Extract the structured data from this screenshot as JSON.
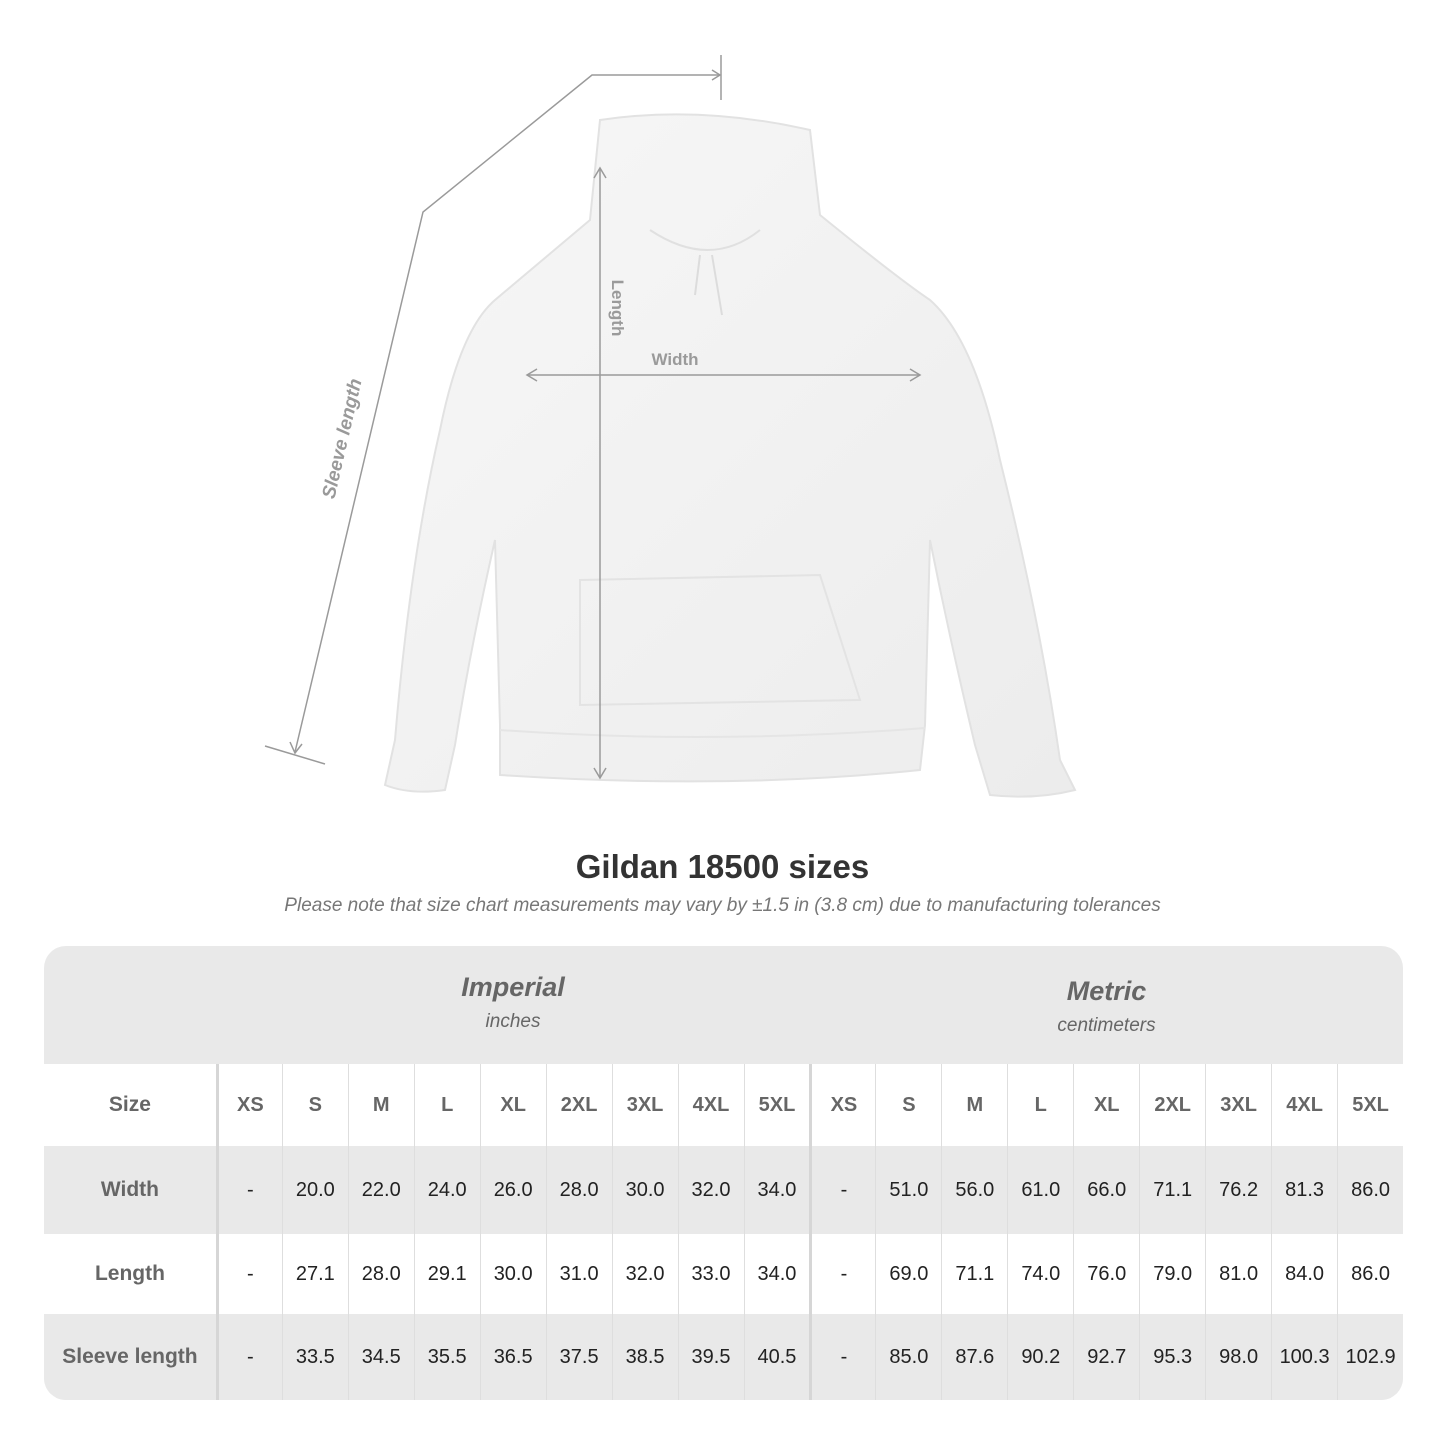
{
  "diagram": {
    "labels": {
      "sleeve": "Sleeve length",
      "length": "Length",
      "width": "Width"
    },
    "line_color": "#9a9a9a"
  },
  "title": "Gildan 18500 sizes",
  "note": "Please note that size chart measurements may vary by ±1.5 in (3.8 cm) due to manufacturing tolerances",
  "table": {
    "imperial": {
      "label": "Imperial",
      "unit": "inches"
    },
    "metric": {
      "label": "Metric",
      "unit": "centimeters"
    },
    "size_label": "Size",
    "sizes": [
      "XS",
      "S",
      "M",
      "L",
      "XL",
      "2XL",
      "3XL",
      "4XL",
      "5XL"
    ],
    "rows": [
      {
        "label": "Width",
        "imperial": [
          "-",
          "20.0",
          "22.0",
          "24.0",
          "26.0",
          "28.0",
          "30.0",
          "32.0",
          "34.0"
        ],
        "metric": [
          "-",
          "51.0",
          "56.0",
          "61.0",
          "66.0",
          "71.1",
          "76.2",
          "81.3",
          "86.0"
        ]
      },
      {
        "label": "Length",
        "imperial": [
          "-",
          "27.1",
          "28.0",
          "29.1",
          "30.0",
          "31.0",
          "32.0",
          "33.0",
          "34.0"
        ],
        "metric": [
          "-",
          "69.0",
          "71.1",
          "74.0",
          "76.0",
          "79.0",
          "81.0",
          "84.0",
          "86.0"
        ]
      },
      {
        "label": "Sleeve length",
        "imperial": [
          "-",
          "33.5",
          "34.5",
          "35.5",
          "36.5",
          "37.5",
          "38.5",
          "39.5",
          "40.5"
        ],
        "metric": [
          "-",
          "85.0",
          "87.6",
          "90.2",
          "92.7",
          "95.3",
          "98.0",
          "100.3",
          "102.9"
        ]
      }
    ]
  }
}
